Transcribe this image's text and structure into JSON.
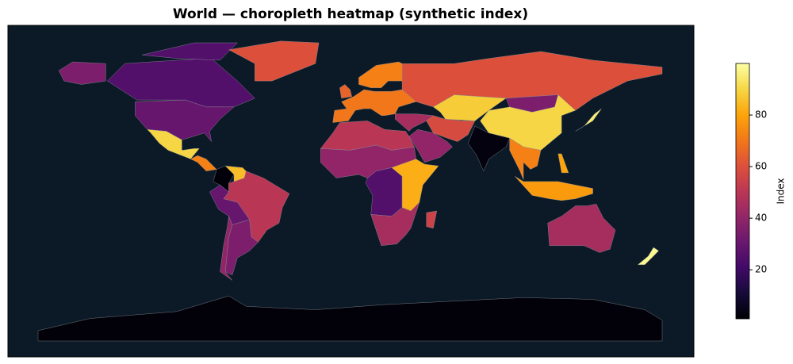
{
  "chart_data": {
    "type": "choropleth",
    "title": "World — choropleth heatmap (synthetic index)",
    "colorbar_label": "Index",
    "colormap": "inferno",
    "clim": [
      1,
      100
    ],
    "cticks": [
      20,
      40,
      60,
      80
    ],
    "values": [
      25,
      25,
      30,
      35,
      60,
      90,
      72,
      2,
      85,
      50,
      30,
      35,
      40,
      60,
      70,
      72,
      65,
      45,
      40,
      58,
      88,
      35,
      90,
      3,
      72,
      78,
      95,
      80,
      50,
      40,
      25,
      82,
      45,
      55,
      45,
      98,
      2
    ]
  }
}
